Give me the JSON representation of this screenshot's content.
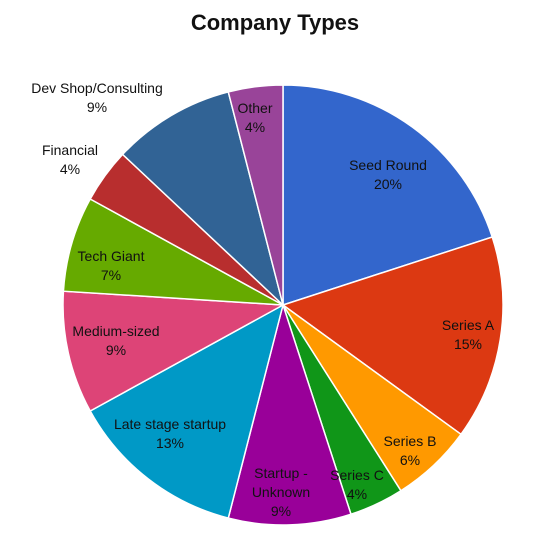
{
  "chart_data": {
    "type": "pie",
    "title": "Company Types",
    "slices": [
      {
        "name": "Seed Round",
        "label": "20%",
        "value": 20,
        "color": "#3366cc"
      },
      {
        "name": "Series A",
        "label": "15%",
        "value": 15,
        "color": "#dc3912"
      },
      {
        "name": "Series B",
        "label": "6%",
        "value": 6,
        "color": "#ff9900"
      },
      {
        "name": "Series C",
        "label": "4%",
        "value": 4,
        "color": "#109618"
      },
      {
        "name": "Startup - Unknown",
        "label": "9%",
        "value": 9,
        "color": "#990099"
      },
      {
        "name": "Late stage startup",
        "label": "13%",
        "value": 13,
        "color": "#0099c6"
      },
      {
        "name": "Medium-sized",
        "label": "9%",
        "value": 9,
        "color": "#dd4477"
      },
      {
        "name": "Tech Giant",
        "label": "7%",
        "value": 7,
        "color": "#66aa00"
      },
      {
        "name": "Financial",
        "label": "4%",
        "value": 4,
        "color": "#b82e2e"
      },
      {
        "name": "Dev Shop/Consulting",
        "label": "9%",
        "value": 9,
        "color": "#316395"
      },
      {
        "name": "Other",
        "label": "4%",
        "value": 4,
        "color": "#994499"
      }
    ]
  }
}
